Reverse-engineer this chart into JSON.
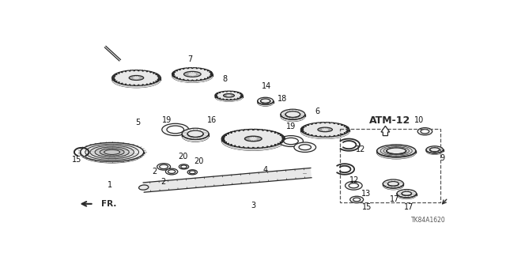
{
  "background_color": "#ffffff",
  "line_color": "#2a2a2a",
  "atm_label": "ATM-12",
  "fr_label": "FR.",
  "part_code": "TK84A1620"
}
